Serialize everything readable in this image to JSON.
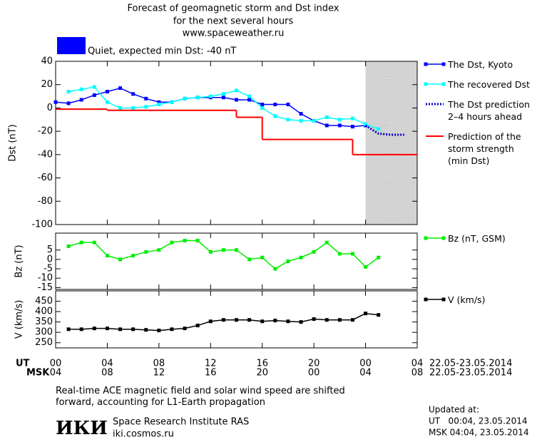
{
  "header": {
    "title_lines": [
      "Forecast of geomagnetic storm and Dst index",
      "for the next several hours",
      "www.spaceweather.ru"
    ],
    "status": {
      "color": "#0000ff",
      "text": "Quiet, expected min Dst: -40 nT"
    }
  },
  "chart_data": [
    {
      "type": "line",
      "ylabel": "Dst (nT)",
      "ylim": [
        -100,
        40
      ],
      "yticks": [
        40,
        20,
        0,
        -20,
        -40,
        -60,
        -80,
        -100
      ],
      "prediction": {
        "xrange": [
          24,
          28
        ],
        "label": "PREDICTION",
        "color": "#d3d3d3"
      },
      "series": [
        {
          "name": "The Dst, Kyoto",
          "color": "#0000ff",
          "marker": true,
          "x": [
            0,
            1,
            2,
            3,
            4,
            5,
            6,
            7,
            8,
            9,
            10,
            11,
            12,
            13,
            14,
            15,
            16,
            17,
            18,
            19,
            20,
            21,
            22,
            23,
            24
          ],
          "values": [
            5,
            4,
            7,
            11,
            14,
            17,
            12,
            8,
            5,
            5,
            8,
            9,
            9,
            9,
            7,
            7,
            3,
            3,
            3,
            -5,
            -11,
            -15,
            -15,
            -16,
            -15
          ]
        },
        {
          "name": "The recovered Dst",
          "color": "#00ffff",
          "marker": true,
          "x": [
            1,
            2,
            3,
            4,
            5,
            6,
            7,
            8,
            9,
            10,
            11,
            12,
            13,
            14,
            15,
            16,
            17,
            18,
            19,
            20,
            21,
            22,
            23,
            24,
            25
          ],
          "values": [
            14,
            16,
            18,
            5,
            0,
            0,
            1,
            3,
            5,
            8,
            9,
            10,
            12,
            15,
            10,
            0,
            -7,
            -10,
            -11,
            -11,
            -8,
            -10,
            -9,
            -14,
            -18
          ]
        },
        {
          "name": "The Dst prediction\n2–4 hours ahead",
          "color": "#0000cc",
          "dash": "dotted",
          "x": [
            24,
            25,
            26,
            27
          ],
          "values": [
            -15,
            -22,
            -23,
            -23
          ]
        },
        {
          "name": "Prediction of the\nstorm strength\n(min Dst)",
          "color": "#ff0000",
          "step": true,
          "x": [
            0,
            4,
            14,
            16,
            23
          ],
          "values": [
            -1,
            -2,
            -8,
            -27,
            -40
          ]
        }
      ]
    },
    {
      "type": "line",
      "ylabel": "Bz (nT)",
      "ylim": [
        -16,
        14
      ],
      "yticks": [
        5,
        0,
        -5,
        -10,
        -15
      ],
      "series": [
        {
          "name": "Bz (nT, GSM)",
          "color": "#00ee00",
          "marker": true,
          "x": [
            1,
            2,
            3,
            4,
            5,
            6,
            7,
            8,
            9,
            10,
            11,
            12,
            13,
            14,
            15,
            16,
            17,
            18,
            19,
            20,
            21,
            22,
            23,
            24,
            25
          ],
          "values": [
            7,
            9,
            9,
            2,
            0,
            2,
            4,
            5,
            9,
            10,
            10,
            4,
            5,
            5,
            0,
            1,
            -5,
            -1,
            1,
            4,
            9,
            3,
            3,
            -4,
            1
          ]
        }
      ]
    },
    {
      "type": "line",
      "ylabel": "V (km/s)",
      "ylim": [
        225,
        500
      ],
      "yticks": [
        450,
        400,
        350,
        300,
        250
      ],
      "series": [
        {
          "name": "V (km/s)",
          "color": "#000000",
          "marker": true,
          "x": [
            1,
            2,
            3,
            4,
            5,
            6,
            7,
            8,
            9,
            10,
            11,
            12,
            13,
            14,
            15,
            16,
            17,
            18,
            19,
            20,
            21,
            22,
            23,
            24,
            25
          ],
          "values": [
            315,
            315,
            319,
            319,
            315,
            315,
            312,
            309,
            315,
            319,
            333,
            353,
            360,
            360,
            360,
            353,
            357,
            353,
            350,
            364,
            360,
            360,
            360,
            391,
            384
          ]
        }
      ]
    }
  ],
  "x_axis": {
    "xlim": [
      0,
      28
    ],
    "rows": [
      {
        "name": "UT",
        "date": "22.05-23.05.2014",
        "ticks": [
          {
            "value": 0,
            "label": "00"
          },
          {
            "value": 4,
            "label": "04"
          },
          {
            "value": 8,
            "label": "08"
          },
          {
            "value": 12,
            "label": "12"
          },
          {
            "value": 16,
            "label": "16"
          },
          {
            "value": 20,
            "label": "20"
          },
          {
            "value": 24,
            "label": "00"
          },
          {
            "value": 28,
            "label": "04"
          }
        ]
      },
      {
        "name": "MSK",
        "date": "22.05-23.05.2014",
        "ticks": [
          {
            "value": 0,
            "label": "04"
          },
          {
            "value": 4,
            "label": "08"
          },
          {
            "value": 8,
            "label": "12"
          },
          {
            "value": 12,
            "label": "16"
          },
          {
            "value": 16,
            "label": "20"
          },
          {
            "value": 20,
            "label": "00"
          },
          {
            "value": 24,
            "label": "04"
          },
          {
            "value": 28,
            "label": "08"
          }
        ]
      }
    ]
  },
  "footer": {
    "note": "Real-time ACE magnetic field and solar wind speed are shifted\nforward, accounting for L1-Earth propagation",
    "logo": "ИКИ",
    "institute": "Space Research Institute RAS",
    "website": "iki.cosmos.ru",
    "updated_title": "Updated at:",
    "updated_ut": "UT   00:04, 23.05.2014",
    "updated_msk": "MSK 04:04, 23.05.2014"
  }
}
